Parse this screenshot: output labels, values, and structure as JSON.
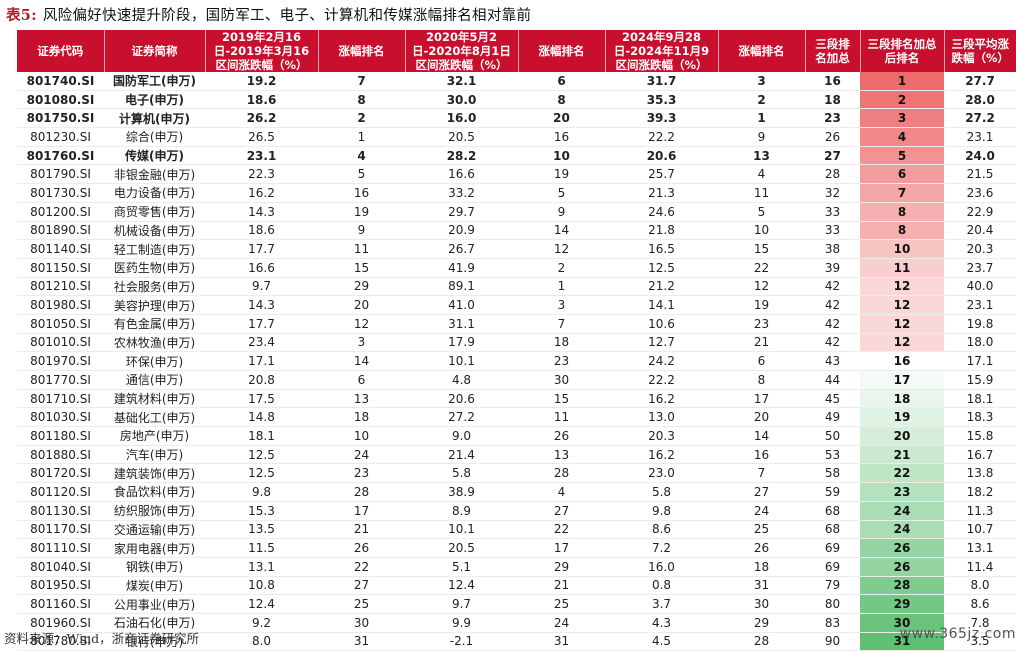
{
  "caption": {
    "label": "表5:",
    "title": "风险偏好快速提升阶段，国防军工、电子、计算机和传媒涨幅排名相对靠前"
  },
  "headers": [
    [
      "证券代码"
    ],
    [
      "证券简称"
    ],
    [
      "2019年2月16日-2019年3月16",
      "区间涨跌幅（%）"
    ],
    [
      "涨幅排名"
    ],
    [
      "2020年5月2日-2020年8月1日",
      "区间涨跌幅（%）"
    ],
    [
      "涨幅排名"
    ],
    [
      "2024年9月28日-2024年11月9",
      "区间涨跌幅（%）"
    ],
    [
      "涨幅排名"
    ],
    [
      "三段排",
      "名加总"
    ],
    [
      "三段排名加总",
      "后排名"
    ],
    [
      "三段平均涨",
      "跌幅（%）"
    ]
  ],
  "rows": [
    {
      "code": "801740.SI",
      "name": "国防军工(申万)",
      "c1": "19.2",
      "r1": "7",
      "c2": "32.1",
      "r2": "6",
      "c3": "31.7",
      "r3": "3",
      "sum": "16",
      "rank": "1",
      "avg": "27.7",
      "bold": true
    },
    {
      "code": "801080.SI",
      "name": "电子(申万)",
      "c1": "18.6",
      "r1": "8",
      "c2": "30.0",
      "r2": "8",
      "c3": "35.3",
      "r3": "2",
      "sum": "18",
      "rank": "2",
      "avg": "28.0",
      "bold": true
    },
    {
      "code": "801750.SI",
      "name": "计算机(申万)",
      "c1": "26.2",
      "r1": "2",
      "c2": "16.0",
      "r2": "20",
      "c3": "39.3",
      "r3": "1",
      "sum": "23",
      "rank": "3",
      "avg": "27.2",
      "bold": true
    },
    {
      "code": "801230.SI",
      "name": "综合(申万)",
      "c1": "26.5",
      "r1": "1",
      "c2": "20.5",
      "r2": "16",
      "c3": "22.2",
      "r3": "9",
      "sum": "26",
      "rank": "4",
      "avg": "23.1",
      "bold": false
    },
    {
      "code": "801760.SI",
      "name": "传媒(申万)",
      "c1": "23.1",
      "r1": "4",
      "c2": "28.2",
      "r2": "10",
      "c3": "20.6",
      "r3": "13",
      "sum": "27",
      "rank": "5",
      "avg": "24.0",
      "bold": true
    },
    {
      "code": "801790.SI",
      "name": "非银金融(申万)",
      "c1": "22.3",
      "r1": "5",
      "c2": "16.6",
      "r2": "19",
      "c3": "25.7",
      "r3": "4",
      "sum": "28",
      "rank": "6",
      "avg": "21.5",
      "bold": false
    },
    {
      "code": "801730.SI",
      "name": "电力设备(申万)",
      "c1": "16.2",
      "r1": "16",
      "c2": "33.2",
      "r2": "5",
      "c3": "21.3",
      "r3": "11",
      "sum": "32",
      "rank": "7",
      "avg": "23.6",
      "bold": false
    },
    {
      "code": "801200.SI",
      "name": "商贸零售(申万)",
      "c1": "14.3",
      "r1": "19",
      "c2": "29.7",
      "r2": "9",
      "c3": "24.6",
      "r3": "5",
      "sum": "33",
      "rank": "8",
      "avg": "22.9",
      "bold": false
    },
    {
      "code": "801890.SI",
      "name": "机械设备(申万)",
      "c1": "18.6",
      "r1": "9",
      "c2": "20.9",
      "r2": "14",
      "c3": "21.8",
      "r3": "10",
      "sum": "33",
      "rank": "8",
      "avg": "20.4",
      "bold": false
    },
    {
      "code": "801140.SI",
      "name": "轻工制造(申万)",
      "c1": "17.7",
      "r1": "11",
      "c2": "26.7",
      "r2": "12",
      "c3": "16.5",
      "r3": "15",
      "sum": "38",
      "rank": "10",
      "avg": "20.3",
      "bold": false
    },
    {
      "code": "801150.SI",
      "name": "医药生物(申万)",
      "c1": "16.6",
      "r1": "15",
      "c2": "41.9",
      "r2": "2",
      "c3": "12.5",
      "r3": "22",
      "sum": "39",
      "rank": "11",
      "avg": "23.7",
      "bold": false
    },
    {
      "code": "801210.SI",
      "name": "社会服务(申万)",
      "c1": "9.7",
      "r1": "29",
      "c2": "89.1",
      "r2": "1",
      "c3": "21.2",
      "r3": "12",
      "sum": "42",
      "rank": "12",
      "avg": "40.0",
      "bold": false
    },
    {
      "code": "801980.SI",
      "name": "美容护理(申万)",
      "c1": "14.3",
      "r1": "20",
      "c2": "41.0",
      "r2": "3",
      "c3": "14.1",
      "r3": "19",
      "sum": "42",
      "rank": "12",
      "avg": "23.1",
      "bold": false
    },
    {
      "code": "801050.SI",
      "name": "有色金属(申万)",
      "c1": "17.7",
      "r1": "12",
      "c2": "31.1",
      "r2": "7",
      "c3": "10.6",
      "r3": "23",
      "sum": "42",
      "rank": "12",
      "avg": "19.8",
      "bold": false
    },
    {
      "code": "801010.SI",
      "name": "农林牧渔(申万)",
      "c1": "23.4",
      "r1": "3",
      "c2": "17.9",
      "r2": "18",
      "c3": "12.7",
      "r3": "21",
      "sum": "42",
      "rank": "12",
      "avg": "18.0",
      "bold": false
    },
    {
      "code": "801970.SI",
      "name": "环保(申万)",
      "c1": "17.1",
      "r1": "14",
      "c2": "10.1",
      "r2": "23",
      "c3": "24.2",
      "r3": "6",
      "sum": "43",
      "rank": "16",
      "avg": "17.1",
      "bold": false
    },
    {
      "code": "801770.SI",
      "name": "通信(申万)",
      "c1": "20.8",
      "r1": "6",
      "c2": "4.8",
      "r2": "30",
      "c3": "22.2",
      "r3": "8",
      "sum": "44",
      "rank": "17",
      "avg": "15.9",
      "bold": false
    },
    {
      "code": "801710.SI",
      "name": "建筑材料(申万)",
      "c1": "17.5",
      "r1": "13",
      "c2": "20.6",
      "r2": "15",
      "c3": "16.2",
      "r3": "17",
      "sum": "45",
      "rank": "18",
      "avg": "18.1",
      "bold": false
    },
    {
      "code": "801030.SI",
      "name": "基础化工(申万)",
      "c1": "14.8",
      "r1": "18",
      "c2": "27.2",
      "r2": "11",
      "c3": "13.0",
      "r3": "20",
      "sum": "49",
      "rank": "19",
      "avg": "18.3",
      "bold": false
    },
    {
      "code": "801180.SI",
      "name": "房地产(申万)",
      "c1": "18.1",
      "r1": "10",
      "c2": "9.0",
      "r2": "26",
      "c3": "20.3",
      "r3": "14",
      "sum": "50",
      "rank": "20",
      "avg": "15.8",
      "bold": false
    },
    {
      "code": "801880.SI",
      "name": "汽车(申万)",
      "c1": "12.5",
      "r1": "24",
      "c2": "21.4",
      "r2": "13",
      "c3": "16.2",
      "r3": "16",
      "sum": "53",
      "rank": "21",
      "avg": "16.7",
      "bold": false
    },
    {
      "code": "801720.SI",
      "name": "建筑装饰(申万)",
      "c1": "12.5",
      "r1": "23",
      "c2": "5.8",
      "r2": "28",
      "c3": "23.0",
      "r3": "7",
      "sum": "58",
      "rank": "22",
      "avg": "13.8",
      "bold": false
    },
    {
      "code": "801120.SI",
      "name": "食品饮料(申万)",
      "c1": "9.8",
      "r1": "28",
      "c2": "38.9",
      "r2": "4",
      "c3": "5.8",
      "r3": "27",
      "sum": "59",
      "rank": "23",
      "avg": "18.2",
      "bold": false
    },
    {
      "code": "801130.SI",
      "name": "纺织服饰(申万)",
      "c1": "15.3",
      "r1": "17",
      "c2": "8.9",
      "r2": "27",
      "c3": "9.8",
      "r3": "24",
      "sum": "68",
      "rank": "24",
      "avg": "11.3",
      "bold": false
    },
    {
      "code": "801170.SI",
      "name": "交通运输(申万)",
      "c1": "13.5",
      "r1": "21",
      "c2": "10.1",
      "r2": "22",
      "c3": "8.6",
      "r3": "25",
      "sum": "68",
      "rank": "24",
      "avg": "10.7",
      "bold": false
    },
    {
      "code": "801110.SI",
      "name": "家用电器(申万)",
      "c1": "11.5",
      "r1": "26",
      "c2": "20.5",
      "r2": "17",
      "c3": "7.2",
      "r3": "26",
      "sum": "69",
      "rank": "26",
      "avg": "13.1",
      "bold": false
    },
    {
      "code": "801040.SI",
      "name": "钢铁(申万)",
      "c1": "13.1",
      "r1": "22",
      "c2": "5.1",
      "r2": "29",
      "c3": "16.0",
      "r3": "18",
      "sum": "69",
      "rank": "26",
      "avg": "11.4",
      "bold": false
    },
    {
      "code": "801950.SI",
      "name": "煤炭(申万)",
      "c1": "10.8",
      "r1": "27",
      "c2": "12.4",
      "r2": "21",
      "c3": "0.8",
      "r3": "31",
      "sum": "79",
      "rank": "28",
      "avg": "8.0",
      "bold": false
    },
    {
      "code": "801160.SI",
      "name": "公用事业(申万)",
      "c1": "12.4",
      "r1": "25",
      "c2": "9.7",
      "r2": "25",
      "c3": "3.7",
      "r3": "30",
      "sum": "80",
      "rank": "29",
      "avg": "8.6",
      "bold": false
    },
    {
      "code": "801960.SI",
      "name": "石油石化(申万)",
      "c1": "9.2",
      "r1": "30",
      "c2": "9.9",
      "r2": "24",
      "c3": "4.3",
      "r3": "29",
      "sum": "83",
      "rank": "30",
      "avg": "7.8",
      "bold": false
    },
    {
      "code": "801780.SI",
      "name": "银行(申万)",
      "c1": "8.0",
      "r1": "31",
      "c2": "-2.1",
      "r2": "31",
      "c3": "4.5",
      "r3": "28",
      "sum": "90",
      "rank": "31",
      "avg": "3.5",
      "bold": false
    }
  ],
  "rank_colors": {
    "top": "#ee6b6b",
    "middle": "#ffffff",
    "bottom": "#5fbf73"
  },
  "footer": {
    "source": "资料来源：Wind，浙商证券研究所"
  },
  "watermark": "www.365jz.com"
}
